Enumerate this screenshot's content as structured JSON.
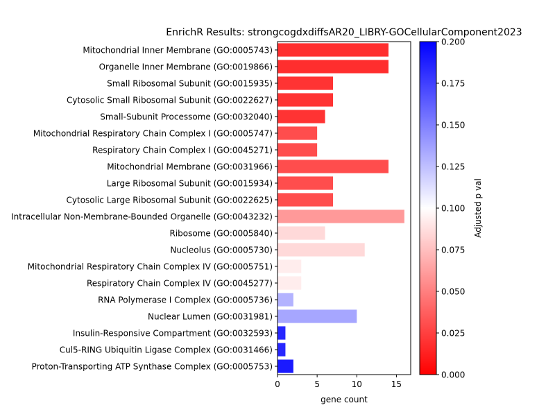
{
  "chart_data": {
    "type": "bar",
    "orientation": "horizontal",
    "title": "EnrichR Results: strongcogdxdiffsAR20_LIBRY-GOCellularComponent2023",
    "xlabel": "gene count",
    "ylabel": "",
    "xlim": [
      0,
      16.8
    ],
    "xticks": [
      0,
      5,
      10,
      15
    ],
    "categories": [
      "Mitochondrial Inner Membrane (GO:0005743)",
      "Organelle Inner Membrane (GO:0019866)",
      "Small Ribosomal Subunit (GO:0015935)",
      "Cytosolic Small Ribosomal Subunit (GO:0022627)",
      "Small-Subunit Processome (GO:0032040)",
      "Mitochondrial Respiratory Chain Complex I (GO:0005747)",
      "Respiratory Chain Complex I (GO:0045271)",
      "Mitochondrial Membrane (GO:0031966)",
      "Large Ribosomal Subunit (GO:0015934)",
      "Cytosolic Large Ribosomal Subunit (GO:0022625)",
      "Intracellular Non-Membrane-Bounded Organelle (GO:0043232)",
      "Ribosome (GO:0005840)",
      "Nucleolus (GO:0005730)",
      "Mitochondrial Respiratory Chain Complex IV (GO:0005751)",
      "Respiratory Chain Complex IV (GO:0045277)",
      "RNA Polymerase I Complex (GO:0005736)",
      "Nuclear Lumen (GO:0031981)",
      "Insulin-Responsive Compartment (GO:0032593)",
      "Cul5-RING Ubiquitin Ligase Complex (GO:0031466)",
      "Proton-Transporting ATP Synthase Complex (GO:0005753)"
    ],
    "values": [
      14,
      14,
      7,
      7,
      6,
      5,
      5,
      14,
      7,
      7,
      16,
      6,
      11,
      3,
      3,
      2,
      10,
      1,
      1,
      2
    ],
    "adjusted_p": [
      0.018,
      0.018,
      0.02,
      0.02,
      0.02,
      0.03,
      0.03,
      0.03,
      0.03,
      0.03,
      0.06,
      0.085,
      0.085,
      0.093,
      0.093,
      0.13,
      0.135,
      0.185,
      0.185,
      0.19
    ],
    "colorbar": {
      "label": "Adjusted p val",
      "range": [
        0,
        0.2
      ],
      "ticks": [
        "0.000",
        "0.025",
        "0.050",
        "0.075",
        "0.100",
        "0.125",
        "0.150",
        "0.175",
        "0.200"
      ],
      "colormap": [
        "#ff0000",
        "#ffffff",
        "#0000ff"
      ]
    }
  }
}
